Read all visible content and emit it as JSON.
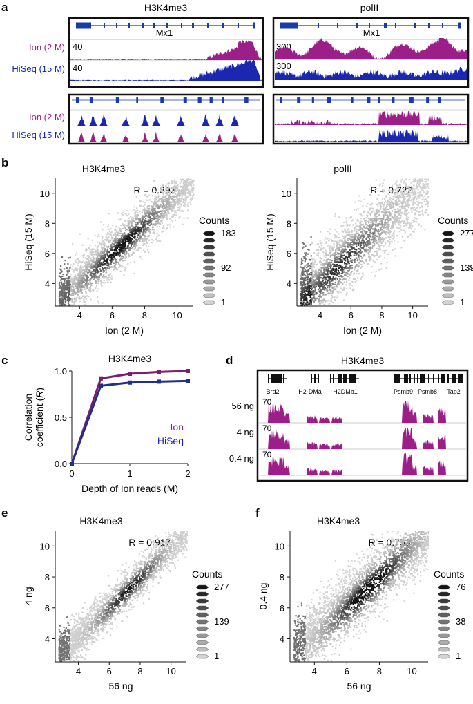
{
  "colors": {
    "ion": "#9c1e88",
    "hiseq": "#1a28b0",
    "frame": "#111111",
    "scatter_light": "#c6c6c6",
    "scatter_dark": "#111111",
    "ion_line": "#7a1f6e",
    "hiseq_line": "#1f2f8c",
    "gene": "#1a3aa8"
  },
  "panel_a": {
    "label": "a",
    "left": {
      "title": "H3K4me3",
      "gene": "Mx1",
      "scale_top": "40",
      "scale_bottom": "40"
    },
    "right": {
      "title": "polII",
      "gene": "Mx1",
      "scale_top": "300",
      "scale_bottom": "300"
    },
    "row_labels": {
      "ion": "Ion (2 M)",
      "hiseq": "HiSeq (15 M)"
    }
  },
  "panel_b": {
    "label": "b"
  },
  "panel_c": {
    "label": "c"
  },
  "panel_d": {
    "label": "d",
    "title": "H3K4me3",
    "genes": [
      "Brd2",
      "H2-DMa",
      "H2DMb1",
      "Psmb9",
      "Psmb8",
      "Tap2"
    ],
    "tracks": [
      {
        "label": "56 ng",
        "scale": "70"
      },
      {
        "label": "4 ng",
        "scale": "70"
      },
      {
        "label": "0.4 ng",
        "scale": "70"
      }
    ]
  },
  "panel_e": {
    "label": "e"
  },
  "panel_f": {
    "label": "f"
  },
  "chart_data": [
    {
      "id": "b_left",
      "type": "scatter",
      "title": "H3K4me3",
      "xlabel": "Ion (2 M)",
      "ylabel": "HiSeq (15 M)",
      "xlim": [
        2.5,
        11
      ],
      "ylim": [
        2.5,
        11
      ],
      "xticks": [
        4,
        6,
        8,
        10
      ],
      "yticks": [
        4,
        6,
        8,
        10
      ],
      "r_label": "R = 0.893",
      "r_value": 0.893,
      "legend": {
        "title": "Counts",
        "max": "183",
        "mid": "92",
        "min": "1"
      }
    },
    {
      "id": "b_right",
      "type": "scatter",
      "title": "polII",
      "xlabel": "Ion (2 M)",
      "ylabel": "HiSeq (15 M)",
      "xlim": [
        2.5,
        11
      ],
      "ylim": [
        2.5,
        11
      ],
      "xticks": [
        4,
        6,
        8,
        10
      ],
      "yticks": [
        4,
        6,
        8,
        10
      ],
      "r_label": "R = 0.722",
      "r_value": 0.722,
      "legend": {
        "title": "Counts",
        "max": "277",
        "mid": "139",
        "min": "1"
      }
    },
    {
      "id": "c",
      "type": "line",
      "title": "H3K4me3",
      "xlabel": "Depth of Ion reads (M)",
      "ylabel": "Correlation coefficient (R)",
      "xlim": [
        0,
        2
      ],
      "ylim": [
        0,
        1
      ],
      "xticks": [
        "0",
        "1",
        "2"
      ],
      "yticks": [
        "0.0",
        "0.5",
        "1.0"
      ],
      "series": [
        {
          "name": "Ion",
          "x": [
            0,
            0.5,
            1,
            1.5,
            2
          ],
          "values": [
            0,
            0.92,
            0.97,
            0.99,
            1.0
          ]
        },
        {
          "name": "HiSeq",
          "x": [
            0,
            0.5,
            1,
            1.5,
            2
          ],
          "values": [
            0,
            0.84,
            0.875,
            0.885,
            0.893
          ]
        }
      ]
    },
    {
      "id": "e",
      "type": "scatter",
      "title": "H3K4me3",
      "xlabel": "56 ng",
      "ylabel": "4 ng",
      "xlim": [
        2.5,
        11
      ],
      "ylim": [
        2.5,
        11
      ],
      "xticks": [
        4,
        6,
        8,
        10
      ],
      "yticks": [
        4,
        6,
        8,
        10
      ],
      "r_label": "R = 0.917",
      "r_value": 0.917,
      "legend": {
        "title": "Counts",
        "max": "277",
        "mid": "139",
        "min": "1"
      }
    },
    {
      "id": "f",
      "type": "scatter",
      "title": "H3K4me3",
      "xlabel": "56 ng",
      "ylabel": "0.4 ng",
      "xlim": [
        2.5,
        11
      ],
      "ylim": [
        2.5,
        11
      ],
      "xticks": [
        4,
        6,
        8,
        10
      ],
      "yticks": [
        4,
        6,
        8,
        10
      ],
      "r_label": "R = 0.753",
      "r_value": 0.753,
      "legend": {
        "title": "Counts",
        "max": "76",
        "mid": "38",
        "min": "1"
      }
    }
  ]
}
